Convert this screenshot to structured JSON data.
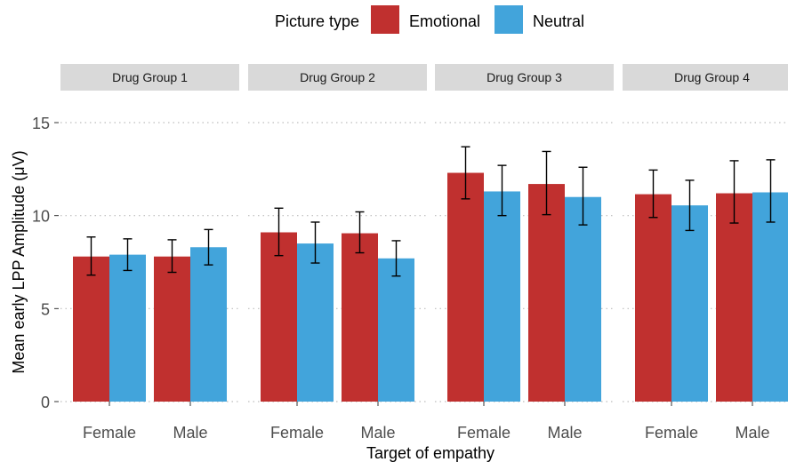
{
  "chart_data": {
    "type": "bar",
    "legend": {
      "title": "Picture type",
      "position": "top",
      "entries": [
        {
          "label": "Emotional",
          "color": "#c0302f"
        },
        {
          "label": "Neutral",
          "color": "#42a4db"
        }
      ]
    },
    "xlabel": "Target of empathy",
    "ylabel": "Mean early LPP Amplitude (μV)",
    "ylim": [
      0,
      15
    ],
    "yticks": [
      0,
      5,
      10,
      15
    ],
    "grid": "horizontal dotted",
    "categories": [
      "Female",
      "Male"
    ],
    "panels": [
      {
        "title": "Drug Group 1",
        "series": [
          {
            "name": "Emotional",
            "values": [
              7.8,
              7.8
            ],
            "errors": [
              [
                6.8,
                8.85
              ],
              [
                6.95,
                8.7
              ]
            ]
          },
          {
            "name": "Neutral",
            "values": [
              7.9,
              8.3
            ],
            "errors": [
              [
                7.05,
                8.75
              ],
              [
                7.35,
                9.25
              ]
            ]
          }
        ]
      },
      {
        "title": "Drug Group 2",
        "series": [
          {
            "name": "Emotional",
            "values": [
              9.1,
              9.05
            ],
            "errors": [
              [
                7.85,
                10.4
              ],
              [
                8.0,
                10.2
              ]
            ]
          },
          {
            "name": "Neutral",
            "values": [
              8.5,
              7.7
            ],
            "errors": [
              [
                7.45,
                9.65
              ],
              [
                6.75,
                8.65
              ]
            ]
          }
        ]
      },
      {
        "title": "Drug Group 3",
        "series": [
          {
            "name": "Emotional",
            "values": [
              12.3,
              11.7
            ],
            "errors": [
              [
                10.9,
                13.7
              ],
              [
                10.05,
                13.45
              ]
            ]
          },
          {
            "name": "Neutral",
            "values": [
              11.3,
              11.0
            ],
            "errors": [
              [
                10.0,
                12.7
              ],
              [
                9.5,
                12.6
              ]
            ]
          }
        ]
      },
      {
        "title": "Drug Group 4",
        "series": [
          {
            "name": "Emotional",
            "values": [
              11.15,
              11.2
            ],
            "errors": [
              [
                9.9,
                12.45
              ],
              [
                9.6,
                12.95
              ]
            ]
          },
          {
            "name": "Neutral",
            "values": [
              10.55,
              11.25
            ],
            "errors": [
              [
                9.2,
                11.9
              ],
              [
                9.65,
                13.0
              ]
            ]
          }
        ]
      }
    ]
  }
}
